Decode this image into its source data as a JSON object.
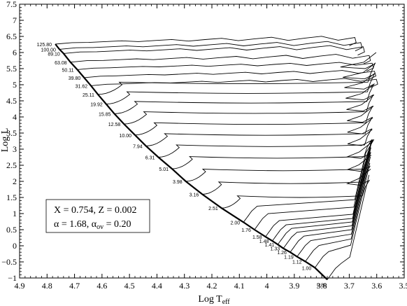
{
  "chart_data": {
    "type": "line",
    "title": "",
    "xlabel_base": "Log T",
    "xlabel_sub": "eff",
    "ylabel": "Log L",
    "xlim": [
      4.9,
      3.5
    ],
    "ylim": [
      -1.0,
      7.5
    ],
    "x_reversed": true,
    "x_ticks": [
      "4.9",
      "4.8",
      "4.7",
      "4.6",
      "4.5",
      "4.4",
      "4.3",
      "4.2",
      "4.1",
      "4",
      "3.9",
      "3.8",
      "3.7",
      "3.6",
      "3.5"
    ],
    "y_ticks": [
      "−1",
      "−0.5",
      "0",
      "0.5",
      "1",
      "1.5",
      "2",
      "2.5",
      "3",
      "3.5",
      "4",
      "4.5",
      "5",
      "5.5",
      "6",
      "6.5",
      "7",
      "7.5"
    ],
    "grid": false,
    "legend": {
      "line1": "X = 0.754, Z = 0.002",
      "line2_prefix": "α = 1.68, α",
      "line2_sub": "ov",
      "line2_suffix": " = 0.20",
      "placement": "bottom-left"
    },
    "zams": [
      {
        "mass": "125.80",
        "logT": 4.77,
        "logL": 6.26
      },
      {
        "mass": "100.00",
        "logT": 4.755,
        "logL": 6.1
      },
      {
        "mass": "89.10",
        "logT": 4.74,
        "logL": 5.97
      },
      {
        "mass": "63.08",
        "logT": 4.715,
        "logL": 5.7
      },
      {
        "mass": "50.11",
        "logT": 4.69,
        "logL": 5.47
      },
      {
        "mass": "39.80",
        "logT": 4.665,
        "logL": 5.22
      },
      {
        "mass": "31.62",
        "logT": 4.64,
        "logL": 4.97
      },
      {
        "mass": "25.11",
        "logT": 4.615,
        "logL": 4.7
      },
      {
        "mass": "19.92",
        "logT": 4.585,
        "logL": 4.4
      },
      {
        "mass": "15.85",
        "logT": 4.555,
        "logL": 4.1
      },
      {
        "mass": "12.58",
        "logT": 4.52,
        "logL": 3.78
      },
      {
        "mass": "10.00",
        "logT": 4.48,
        "logL": 3.44
      },
      {
        "mass": "7.94",
        "logT": 4.44,
        "logL": 3.1
      },
      {
        "mass": "6.31",
        "logT": 4.395,
        "logL": 2.75
      },
      {
        "mass": "5.01",
        "logT": 4.345,
        "logL": 2.39
      },
      {
        "mass": "3.98",
        "logT": 4.295,
        "logL": 2.0
      },
      {
        "mass": "3.16",
        "logT": 4.235,
        "logL": 1.6
      },
      {
        "mass": "2.51",
        "logT": 4.165,
        "logL": 1.17
      },
      {
        "mass": "2.00",
        "logT": 4.085,
        "logL": 0.73
      },
      {
        "mass": "1.76",
        "logT": 4.045,
        "logL": 0.5
      },
      {
        "mass": "1.58",
        "logT": 4.005,
        "logL": 0.28
      },
      {
        "mass": "1.48",
        "logT": 3.98,
        "logL": 0.15
      },
      {
        "mass": "1.41",
        "logT": 3.96,
        "logL": 0.04
      },
      {
        "mass": "1.33",
        "logT": 3.94,
        "logL": -0.08
      },
      {
        "mass": "1.26",
        "logT": 3.915,
        "logL": -0.2
      },
      {
        "mass": "1.19",
        "logT": 3.89,
        "logL": -0.34
      },
      {
        "mass": "1.12",
        "logT": 3.86,
        "logL": -0.49
      },
      {
        "mass": "1.00",
        "logT": 3.825,
        "logL": -0.68
      },
      {
        "mass": "0.80",
        "logT": 3.78,
        "logL": -1.05
      }
    ]
  }
}
